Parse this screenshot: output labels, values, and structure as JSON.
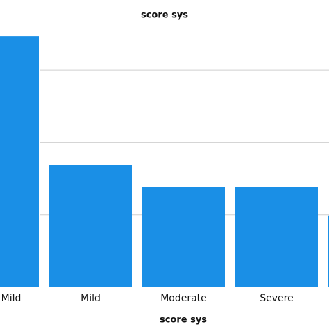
{
  "chart_data": {
    "type": "bar",
    "title": "score sys",
    "x_label": "score sys",
    "categories": [
      "Mild",
      "Mild",
      "Moderate",
      "Severe",
      null
    ],
    "values": [
      3.47,
      1.69,
      1.39,
      1.39,
      0.99
    ],
    "color": "#1a8fe6",
    "ylim": [
      0,
      3.5
    ],
    "gridlines": [
      1,
      2,
      3
    ]
  }
}
